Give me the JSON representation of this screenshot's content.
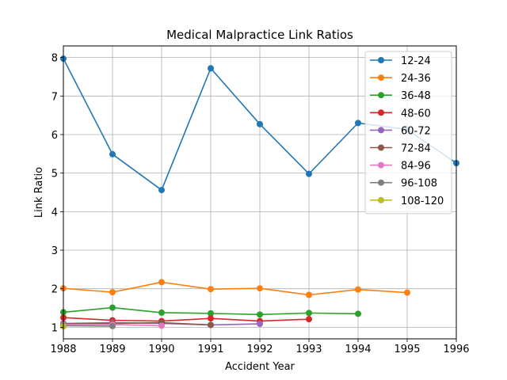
{
  "chart_data": {
    "type": "line",
    "title": "Medical Malpractice Link Ratios",
    "xlabel": "Accident Year",
    "ylabel": "Link Ratio",
    "xlim": [
      1988,
      1996
    ],
    "ylim": [
      0.7,
      8.3
    ],
    "xticks": [
      "1988",
      "1989",
      "1990",
      "1991",
      "1992",
      "1993",
      "1994",
      "1995",
      "1996"
    ],
    "yticks": [
      "1",
      "2",
      "3",
      "4",
      "5",
      "6",
      "7",
      "8"
    ],
    "grid": true,
    "legend_position": "top-right",
    "series": [
      {
        "name": "12-24",
        "color": "#1f77b4",
        "x": [
          1988,
          1989,
          1990,
          1991,
          1992,
          1993,
          1994,
          1995,
          1996
        ],
        "values": [
          7.97,
          5.49,
          4.56,
          7.72,
          6.27,
          4.98,
          6.3,
          6.13,
          5.26
        ]
      },
      {
        "name": "24-36",
        "color": "#ff7f0e",
        "x": [
          1988,
          1989,
          1990,
          1991,
          1992,
          1993,
          1994,
          1995
        ],
        "values": [
          2.01,
          1.91,
          2.17,
          1.99,
          2.01,
          1.84,
          1.98,
          1.9
        ]
      },
      {
        "name": "36-48",
        "color": "#2ca02c",
        "x": [
          1988,
          1989,
          1990,
          1991,
          1992,
          1993,
          1994
        ],
        "values": [
          1.39,
          1.51,
          1.38,
          1.36,
          1.33,
          1.37,
          1.35
        ]
      },
      {
        "name": "48-60",
        "color": "#d62728",
        "x": [
          1988,
          1989,
          1990,
          1991,
          1992,
          1993
        ],
        "values": [
          1.25,
          1.18,
          1.16,
          1.23,
          1.16,
          1.21
        ]
      },
      {
        "name": "60-72",
        "color": "#9467bd",
        "x": [
          1988,
          1989,
          1990,
          1991,
          1992
        ],
        "values": [
          1.1,
          1.12,
          1.1,
          1.06,
          1.09
        ]
      },
      {
        "name": "72-84",
        "color": "#8c564b",
        "x": [
          1988,
          1989,
          1990,
          1991
        ],
        "values": [
          1.09,
          1.1,
          1.12,
          1.06
        ]
      },
      {
        "name": "84-96",
        "color": "#e377c2",
        "x": [
          1988,
          1989,
          1990
        ],
        "values": [
          1.07,
          1.07,
          1.04
        ]
      },
      {
        "name": "96-108",
        "color": "#7f7f7f",
        "x": [
          1988,
          1989
        ],
        "values": [
          1.04,
          1.03
        ]
      },
      {
        "name": "108-120",
        "color": "#bcbd22",
        "x": [
          1988
        ],
        "values": [
          1.02
        ]
      }
    ]
  }
}
